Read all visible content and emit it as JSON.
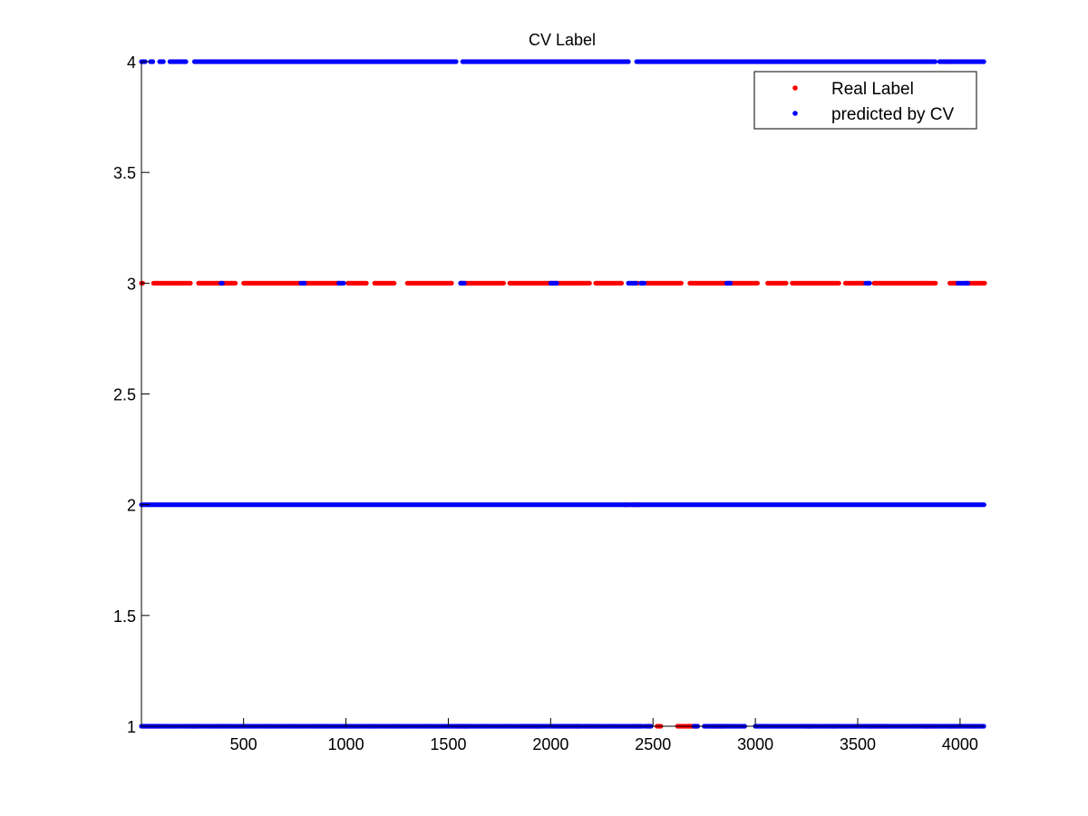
{
  "chart_data": {
    "type": "scatter",
    "title": "CV Label",
    "xlabel": "",
    "ylabel": "",
    "xlim": [
      1,
      4120
    ],
    "ylim": [
      1,
      4
    ],
    "xticks": [
      500,
      1000,
      1500,
      2000,
      2500,
      3000,
      3500,
      4000
    ],
    "yticks": [
      1,
      1.5,
      2,
      2.5,
      3,
      3.5,
      4
    ],
    "grid": false,
    "legend_position": "top-right",
    "series": [
      {
        "name": "Real Label",
        "color": "#ff0000",
        "marker": "dot",
        "levels": {
          "1": [
            [
              20,
              90
            ],
            [
              250,
              270
            ],
            [
              380,
              385
            ],
            [
              1000,
              1010
            ],
            [
              1550,
              1600
            ],
            [
              1860,
              1950
            ],
            [
              2040,
              2150
            ],
            [
              2170,
              2230
            ],
            [
              2420,
              2430
            ],
            [
              2520,
              2540
            ],
            [
              2620,
              2720
            ],
            [
              2790,
              2850
            ],
            [
              3240,
              3280
            ],
            [
              3370,
              3390
            ],
            [
              3560,
              3640
            ],
            [
              3820,
              3880
            ],
            [
              3950,
              4000
            ],
            [
              4050,
              4080
            ]
          ],
          "2": [
            [
              2400,
              2430
            ],
            [
              2360,
              2380
            ]
          ],
          "3": [
            [
              1,
              10
            ],
            [
              60,
              240
            ],
            [
              280,
              460
            ],
            [
              500,
              780
            ],
            [
              800,
              970
            ],
            [
              1010,
              1100
            ],
            [
              1140,
              1240
            ],
            [
              1300,
              1520
            ],
            [
              1560,
              1770
            ],
            [
              1800,
              2190
            ],
            [
              2220,
              2350
            ],
            [
              2420,
              2430
            ],
            [
              2470,
              2640
            ],
            [
              2680,
              3010
            ],
            [
              3060,
              3150
            ],
            [
              3180,
              3410
            ],
            [
              3440,
              3530
            ],
            [
              3580,
              3880
            ],
            [
              3950,
              3990
            ],
            [
              4030,
              4120
            ]
          ],
          "4": [
            [
              3930,
              3960
            ],
            [
              3830,
              3840
            ]
          ]
        }
      },
      {
        "name": "predicted by CV",
        "color": "#0000ff",
        "marker": "dot",
        "levels": {
          "1": [
            [
              1,
              1320
            ],
            [
              1325,
              2450
            ],
            [
              2460,
              2490
            ],
            [
              2700,
              2720
            ],
            [
              2750,
              2950
            ],
            [
              3000,
              4120
            ]
          ],
          "2": [
            [
              1,
              4120
            ]
          ],
          "3": [
            [
              390,
              400
            ],
            [
              780,
              800
            ],
            [
              965,
              990
            ],
            [
              1560,
              1580
            ],
            [
              2000,
              2030
            ],
            [
              2380,
              2420
            ],
            [
              2440,
              2460
            ],
            [
              2860,
              2880
            ],
            [
              3540,
              3560
            ],
            [
              3990,
              4040
            ]
          ],
          "4": [
            [
              1,
              20
            ],
            [
              45,
              60
            ],
            [
              90,
              110
            ],
            [
              140,
              220
            ],
            [
              260,
              1540
            ],
            [
              1570,
              2380
            ],
            [
              2420,
              3880
            ],
            [
              3900,
              4120
            ]
          ]
        }
      }
    ]
  }
}
